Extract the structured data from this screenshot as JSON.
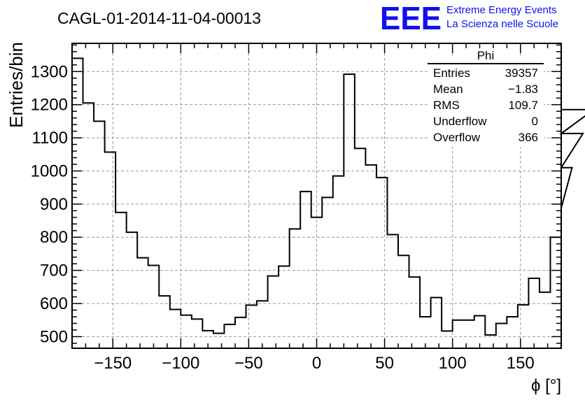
{
  "title": "CAGL-01-2014-11-04-00013",
  "logo": {
    "mark": "EEE",
    "line1": "Extreme Energy Events",
    "line2": "La Scienza nelle Scuole",
    "color": "#1010ee"
  },
  "stats": {
    "title": "Phi",
    "rows": [
      {
        "label": "Entries",
        "value": "39357"
      },
      {
        "label": "Mean",
        "value": "−1.83"
      },
      {
        "label": "RMS",
        "value": "109.7"
      },
      {
        "label": "Underflow",
        "value": "0"
      },
      {
        "label": "Overflow",
        "value": "366"
      }
    ]
  },
  "chart_data": {
    "type": "bar",
    "style": "step-histogram",
    "xlabel": "ϕ [°]",
    "ylabel": "Entries/bin",
    "xlim": [
      -180,
      180
    ],
    "ylim": [
      465,
      1385
    ],
    "bin_width": 8,
    "bin_start": -180,
    "xticks": [
      -150,
      -100,
      -50,
      0,
      50,
      100,
      150
    ],
    "xtick_labels": [
      "−150",
      "−100",
      "−50",
      "0",
      "50",
      "100",
      "150"
    ],
    "yticks": [
      500,
      600,
      700,
      800,
      900,
      1000,
      1100,
      1200,
      1300
    ],
    "grid": true,
    "values": [
      1340,
      1205,
      1150,
      1057,
      875,
      815,
      738,
      715,
      623,
      582,
      565,
      553,
      518,
      510,
      537,
      558,
      595,
      608,
      683,
      713,
      825,
      938,
      860,
      920,
      985,
      1292,
      1068,
      1018,
      980,
      808,
      745,
      680,
      560,
      618,
      517,
      550,
      550,
      563,
      505,
      540,
      560,
      596,
      676,
      634,
      800,
      888,
      1010,
      1113,
      1185
    ],
    "line_color": "#000000"
  }
}
